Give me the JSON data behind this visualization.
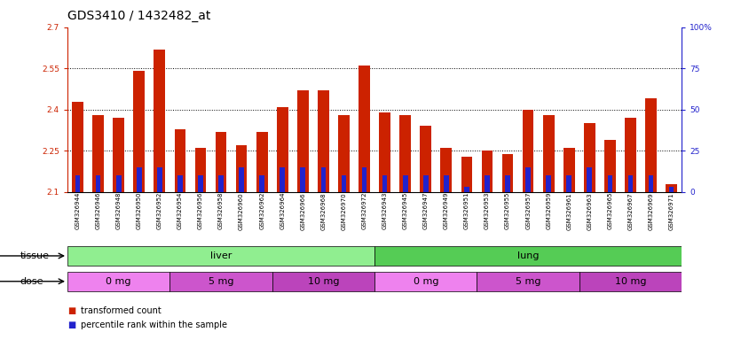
{
  "title": "GDS3410 / 1432482_at",
  "samples": [
    "GSM326944",
    "GSM326946",
    "GSM326948",
    "GSM326950",
    "GSM326952",
    "GSM326954",
    "GSM326956",
    "GSM326958",
    "GSM326960",
    "GSM326962",
    "GSM326964",
    "GSM326966",
    "GSM326968",
    "GSM326970",
    "GSM326972",
    "GSM326943",
    "GSM326945",
    "GSM326947",
    "GSM326949",
    "GSM326951",
    "GSM326953",
    "GSM326955",
    "GSM326957",
    "GSM326959",
    "GSM326961",
    "GSM326963",
    "GSM326965",
    "GSM326967",
    "GSM326969",
    "GSM326971"
  ],
  "red_values": [
    2.43,
    2.38,
    2.37,
    2.54,
    2.62,
    2.33,
    2.26,
    2.32,
    2.27,
    2.32,
    2.41,
    2.47,
    2.47,
    2.38,
    2.56,
    2.39,
    2.38,
    2.34,
    2.26,
    2.23,
    2.25,
    2.24,
    2.4,
    2.38,
    2.26,
    2.35,
    2.29,
    2.37,
    2.44,
    2.13
  ],
  "blue_percentiles": [
    10,
    10,
    10,
    15,
    15,
    10,
    10,
    10,
    15,
    10,
    15,
    15,
    15,
    10,
    15,
    10,
    10,
    10,
    10,
    3,
    10,
    10,
    15,
    10,
    10,
    15,
    10,
    10,
    10,
    3
  ],
  "ymin": 2.1,
  "ymax": 2.7,
  "yticks_left": [
    2.1,
    2.25,
    2.4,
    2.55,
    2.7
  ],
  "yticks_right": [
    0,
    25,
    50,
    75,
    100
  ],
  "grid_lines": [
    2.25,
    2.4,
    2.55
  ],
  "tissue_groups": [
    {
      "label": "liver",
      "start": 0,
      "end": 15,
      "color": "#90EE90"
    },
    {
      "label": "lung",
      "start": 15,
      "end": 30,
      "color": "#55CC55"
    }
  ],
  "dose_groups": [
    {
      "label": "0 mg",
      "start": 0,
      "end": 5,
      "color": "#EE82EE"
    },
    {
      "label": "5 mg",
      "start": 5,
      "end": 10,
      "color": "#CC55CC"
    },
    {
      "label": "10 mg",
      "start": 10,
      "end": 15,
      "color": "#BB44BB"
    },
    {
      "label": "0 mg",
      "start": 15,
      "end": 20,
      "color": "#EE82EE"
    },
    {
      "label": "5 mg",
      "start": 20,
      "end": 25,
      "color": "#CC55CC"
    },
    {
      "label": "10 mg",
      "start": 25,
      "end": 30,
      "color": "#BB44BB"
    }
  ],
  "bar_color_red": "#CC2200",
  "bar_color_blue": "#2222CC",
  "plot_bg": "#FFFFFF",
  "left_axis_color": "#CC2200",
  "right_axis_color": "#2222CC",
  "title_fontsize": 10,
  "tick_fontsize": 6.5,
  "sample_fontsize": 5.0,
  "row_label_fontsize": 8,
  "bar_width": 0.55,
  "legend_red_label": "transformed count",
  "legend_blue_label": "percentile rank within the sample"
}
